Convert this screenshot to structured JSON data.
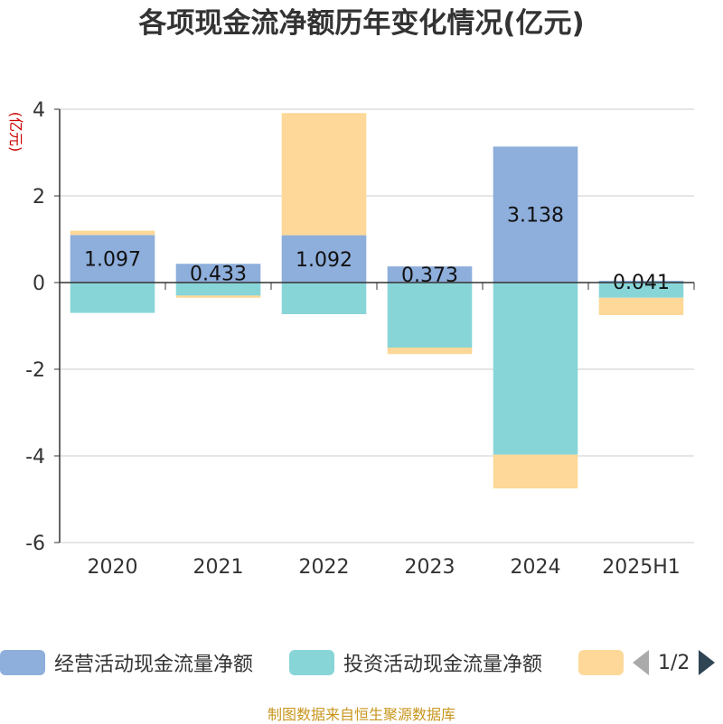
{
  "chart_data": {
    "type": "bar",
    "title": "各项现金流净额历年变化情况(亿元)",
    "ylabel": "(亿元)",
    "categories": [
      "2020",
      "2021",
      "2022",
      "2023",
      "2024",
      "2025H1"
    ],
    "ylim": [
      -6,
      4
    ],
    "yticks": [
      4,
      2,
      0,
      -2,
      -4,
      -6
    ],
    "stacked": true,
    "grid": true,
    "series": [
      {
        "name": "经营活动现金流量净额",
        "color": "#8eaedb",
        "values": [
          1.097,
          0.433,
          1.092,
          0.373,
          3.138,
          0.041
        ]
      },
      {
        "name": "投资活动现金流量净额",
        "color": "#88d5d8",
        "values": [
          -0.7,
          -0.3,
          -0.73,
          -1.5,
          -3.97,
          -0.35
        ]
      },
      {
        "name": "",
        "color": "#fdd898",
        "values": [
          0.1,
          -0.05,
          2.82,
          -0.15,
          -0.78,
          -0.4
        ]
      }
    ],
    "data_labels": [
      "1.097",
      "0.433",
      "1.092",
      "0.373",
      "3.138",
      "0.041"
    ]
  },
  "legend": {
    "page": "1/2"
  },
  "footer": "制图数据来自恒生聚源数据库"
}
